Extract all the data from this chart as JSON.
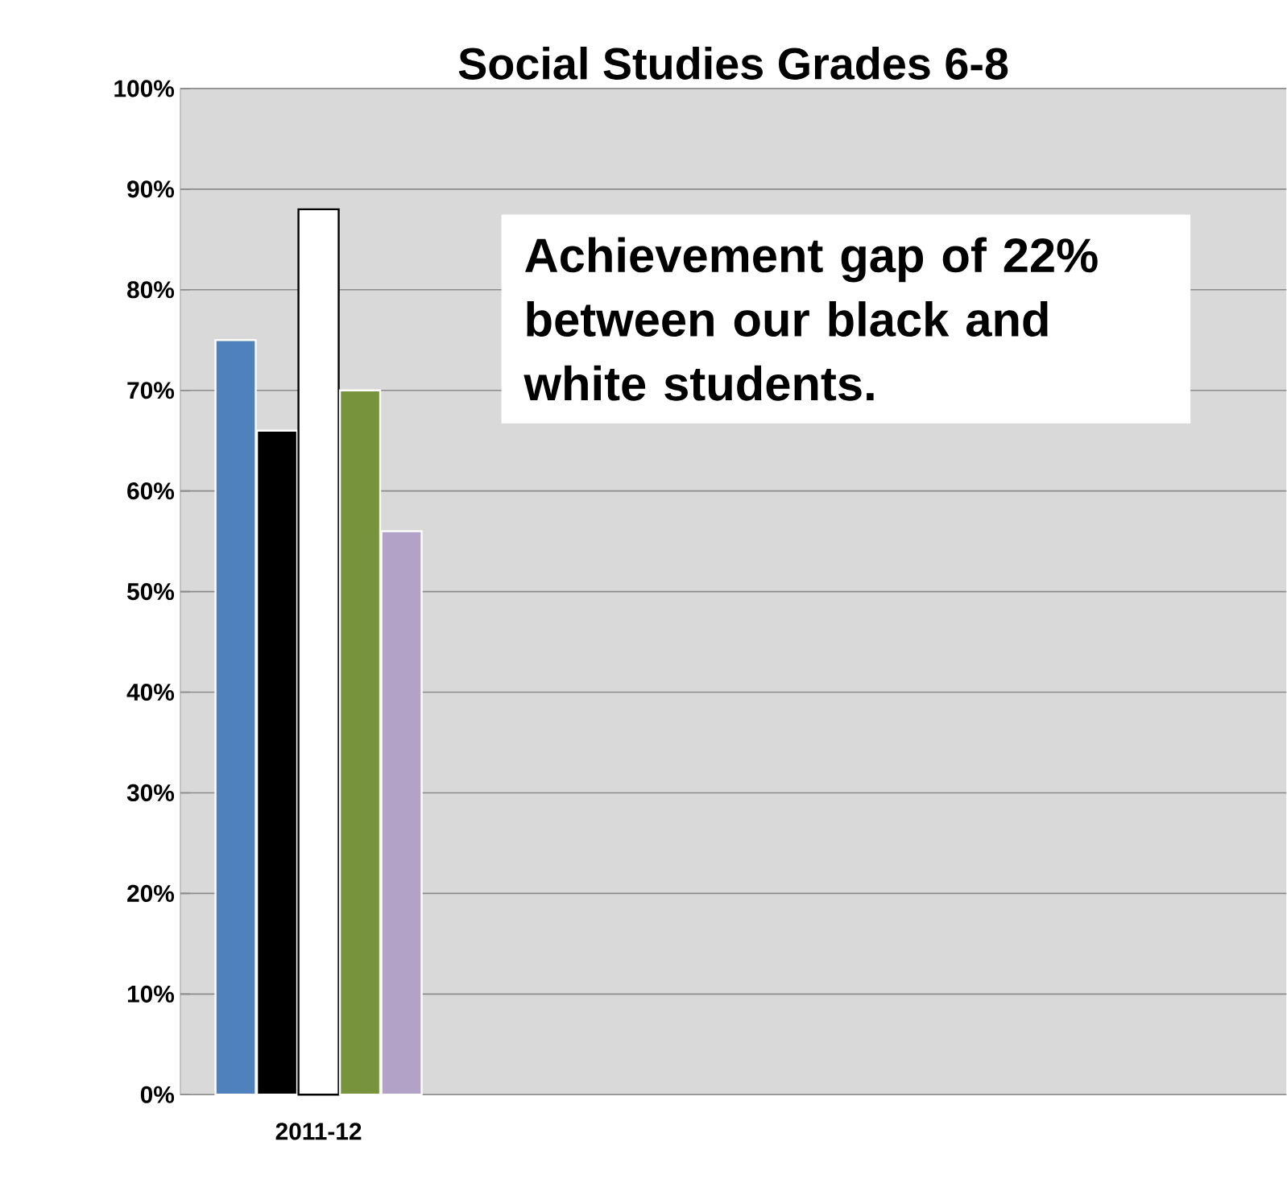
{
  "chart_data": {
    "type": "bar",
    "title": "Social Studies Grades 6-8",
    "categories": [
      "2011-12",
      null,
      null,
      null
    ],
    "series": [
      {
        "color": "#4f81bd",
        "values": [
          75,
          null,
          null,
          null
        ]
      },
      {
        "color": "#000000",
        "values": [
          66,
          null,
          null,
          null
        ]
      },
      {
        "color": "#ffffff",
        "values": [
          88,
          null,
          null,
          null
        ]
      },
      {
        "color": "#77933c",
        "values": [
          70,
          null,
          null,
          null
        ]
      },
      {
        "color": "#b3a2c7",
        "values": [
          56,
          null,
          null,
          null
        ]
      }
    ],
    "ylim": [
      0,
      100
    ],
    "yticks": [
      {
        "value": 0,
        "label": "0%"
      },
      {
        "value": 10,
        "label": "10%"
      },
      {
        "value": 20,
        "label": "20%"
      },
      {
        "value": 30,
        "label": "30%"
      },
      {
        "value": 40,
        "label": "40%"
      },
      {
        "value": 50,
        "label": "50%"
      },
      {
        "value": 60,
        "label": "60%"
      },
      {
        "value": 70,
        "label": "70%"
      },
      {
        "value": 80,
        "label": "80%"
      },
      {
        "value": 90,
        "label": "90%"
      },
      {
        "value": 100,
        "label": "100%"
      }
    ],
    "grid": "y",
    "annotations": [
      "Achievement gap of 22% between our black and white students."
    ]
  }
}
